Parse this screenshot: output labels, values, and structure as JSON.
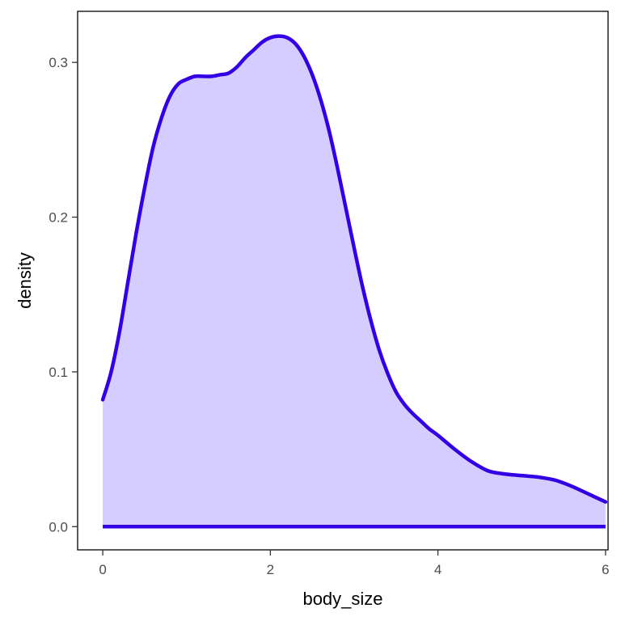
{
  "chart_data": {
    "type": "area",
    "title": "",
    "xlabel": "body_size",
    "ylabel": "density",
    "xlim": [
      -0.3,
      6.03
    ],
    "ylim": [
      -0.015,
      0.333
    ],
    "x_ticks": [
      0,
      2,
      4,
      6
    ],
    "x_tick_labels": [
      "0",
      "2",
      "4",
      "6"
    ],
    "y_ticks": [
      0.0,
      0.1,
      0.2,
      0.3
    ],
    "y_tick_labels": [
      "0.0",
      "0.1",
      "0.2",
      "0.3"
    ],
    "grid": false,
    "legend": "none",
    "line_color": "#3300e6",
    "fill_color": "#d5ccff",
    "series": [
      {
        "x": [
          0.0,
          0.1,
          0.2,
          0.3,
          0.4,
          0.5,
          0.6,
          0.7,
          0.8,
          0.9,
          1.0,
          1.1,
          1.2,
          1.3,
          1.4,
          1.5,
          1.6,
          1.7,
          1.8,
          1.9,
          2.0,
          2.1,
          2.2,
          2.3,
          2.4,
          2.5,
          2.6,
          2.7,
          2.8,
          2.9,
          3.0,
          3.1,
          3.2,
          3.3,
          3.4,
          3.5,
          3.6,
          3.7,
          3.8,
          3.9,
          4.0,
          4.2,
          4.4,
          4.6,
          4.8,
          5.0,
          5.2,
          5.4,
          5.6,
          5.8,
          6.0
        ],
        "y": [
          0.082,
          0.1,
          0.126,
          0.158,
          0.19,
          0.219,
          0.245,
          0.264,
          0.278,
          0.286,
          0.289,
          0.291,
          0.291,
          0.291,
          0.292,
          0.293,
          0.297,
          0.303,
          0.308,
          0.313,
          0.316,
          0.317,
          0.316,
          0.312,
          0.304,
          0.292,
          0.276,
          0.256,
          0.232,
          0.206,
          0.18,
          0.155,
          0.133,
          0.114,
          0.099,
          0.087,
          0.079,
          0.073,
          0.068,
          0.063,
          0.059,
          0.05,
          0.042,
          0.036,
          0.034,
          0.033,
          0.032,
          0.03,
          0.026,
          0.021,
          0.016
        ]
      }
    ]
  }
}
